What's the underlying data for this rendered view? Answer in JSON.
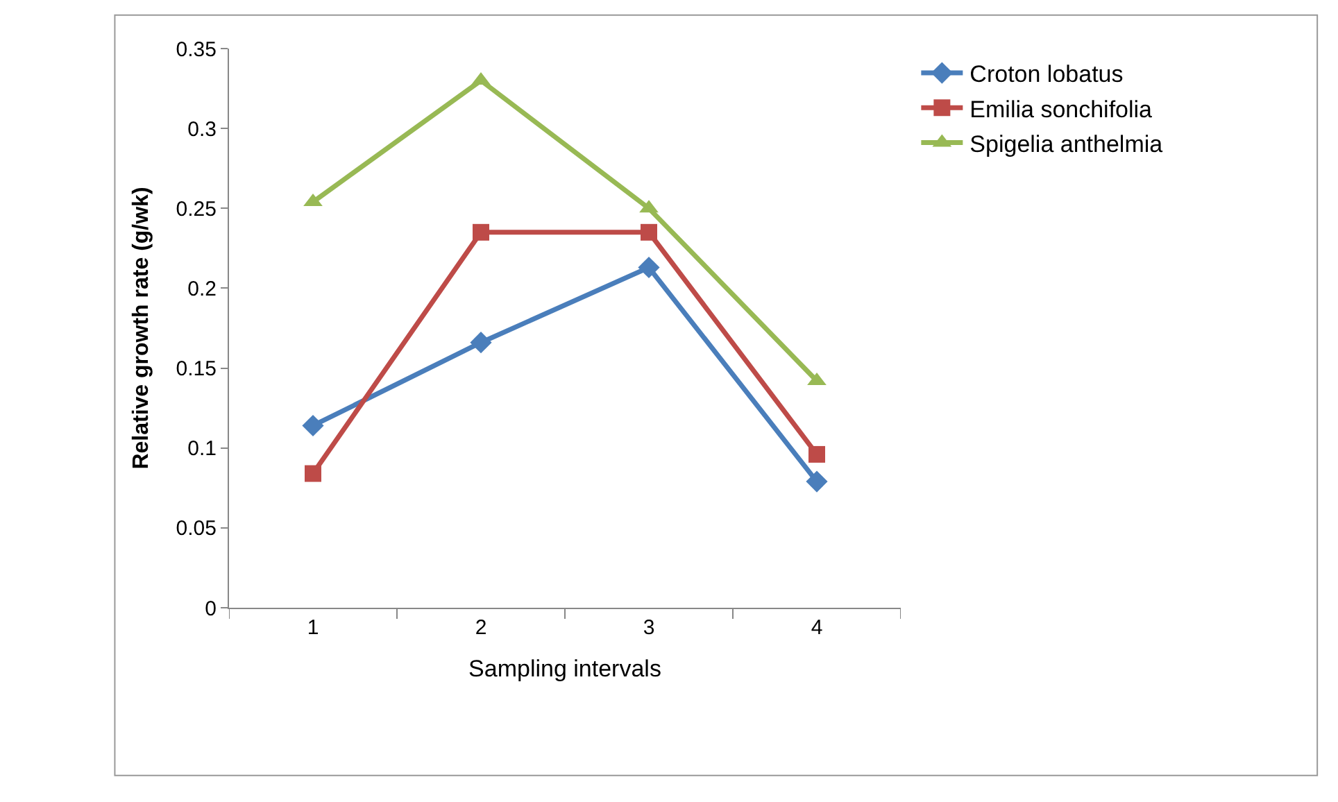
{
  "chart_data": {
    "type": "line",
    "xlabel": "Sampling intervals",
    "ylabel": "Relative growth rate (g/wk)",
    "categories": [
      "1",
      "2",
      "3",
      "4"
    ],
    "ylim": [
      0,
      0.35
    ],
    "yticks": [
      0,
      0.05,
      0.1,
      0.15,
      0.2,
      0.25,
      0.3,
      0.35
    ],
    "legend": "right",
    "series": [
      {
        "name": "Croton lobatus",
        "color": "#4a7ebb",
        "marker": "diamond",
        "values": [
          0.114,
          0.166,
          0.213,
          0.079
        ]
      },
      {
        "name": "Emilia sonchifolia",
        "color": "#be4b48",
        "marker": "square",
        "values": [
          0.084,
          0.235,
          0.235,
          0.096
        ]
      },
      {
        "name": "Spigelia anthelmia",
        "color": "#98b954",
        "marker": "triangle",
        "values": [
          0.254,
          0.33,
          0.25,
          0.142
        ]
      }
    ]
  }
}
